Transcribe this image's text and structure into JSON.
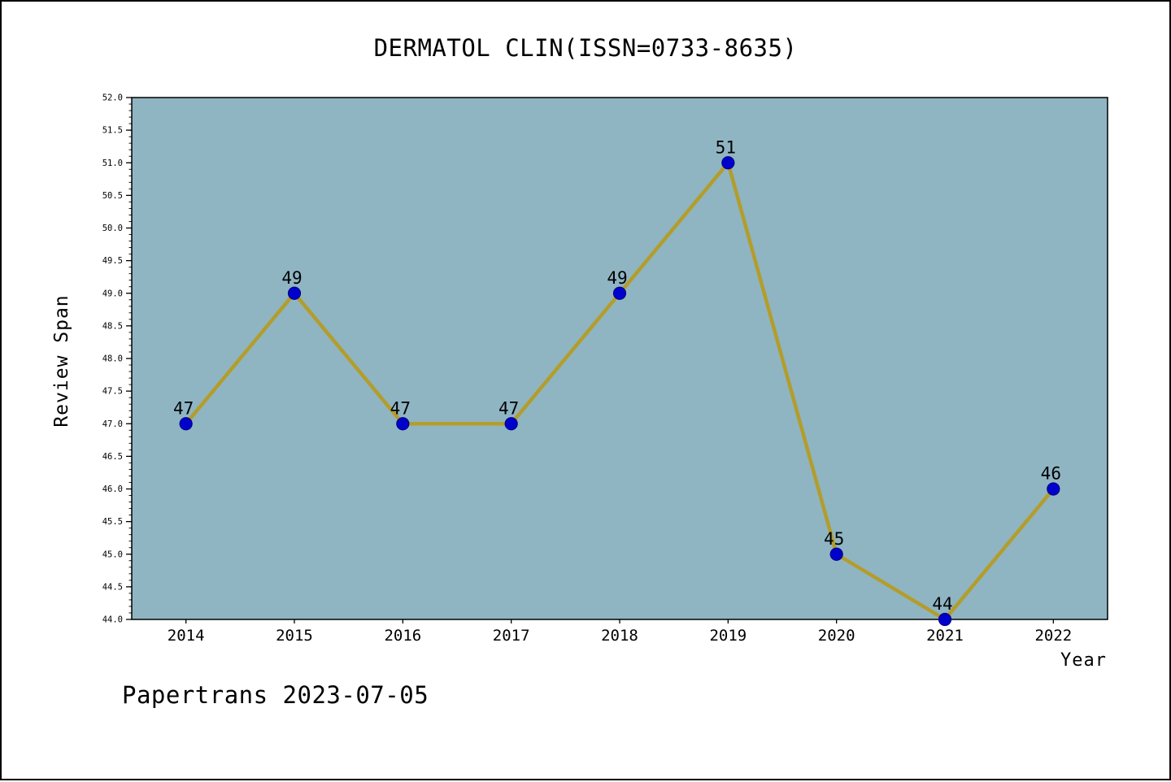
{
  "page": {
    "watermark": "Papertrans 2023-07-05"
  },
  "chart_data": {
    "type": "line",
    "title": "DERMATOL CLIN(ISSN=0733-8635)",
    "xlabel": "Year",
    "ylabel": "Review Span",
    "x": [
      2014,
      2015,
      2016,
      2017,
      2018,
      2019,
      2020,
      2021,
      2022
    ],
    "series": [
      {
        "name": "Review Span",
        "values": [
          47,
          49,
          47,
          47,
          49,
          51,
          45,
          44,
          46
        ]
      }
    ],
    "point_labels": [
      "47",
      "49",
      "47",
      "47",
      "49",
      "51",
      "45",
      "44",
      "46"
    ],
    "xlim": [
      2013.5,
      2022.5
    ],
    "ylim": [
      44.0,
      52.0
    ],
    "ytick_step": 0.5,
    "ytick_minor_step": 0.1,
    "grid": false,
    "legend": null,
    "colors": {
      "page_background": "#ffffff",
      "plot_background": "#8fb5c3",
      "line": "#b39d2b",
      "marker_fill": "#0000cd",
      "marker_edge": "#00008b",
      "axis": "#000000",
      "text": "#000000"
    }
  }
}
